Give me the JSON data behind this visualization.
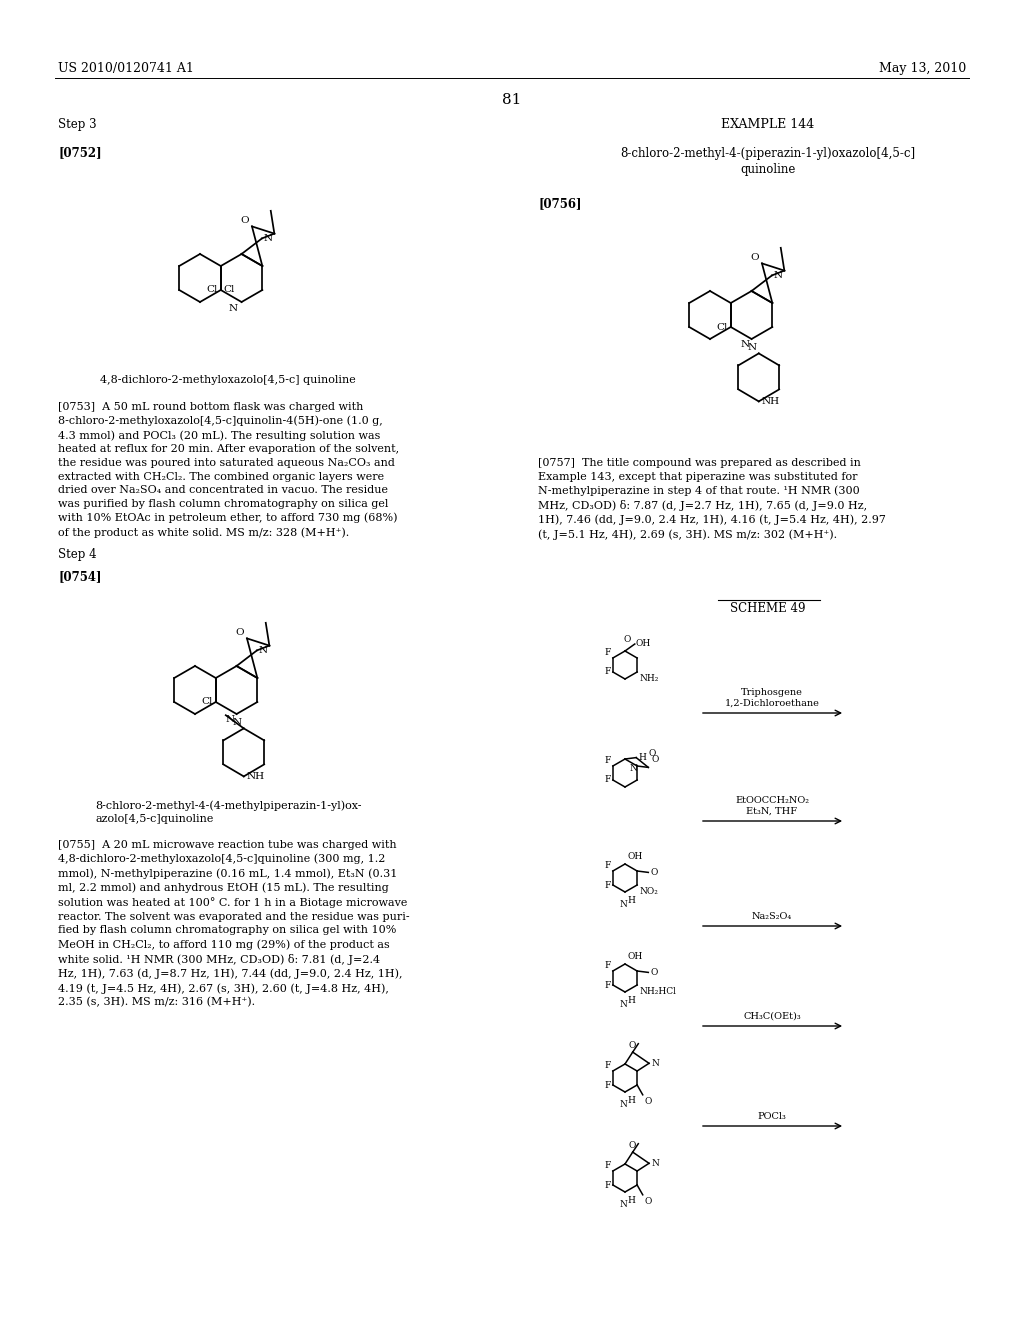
{
  "page_header_left": "US 2010/0120741 A1",
  "page_header_right": "May 13, 2010",
  "page_number": "81",
  "background_color": "#ffffff",
  "text_color": "#000000",
  "left_step3": "Step 3",
  "left_0752": "[0752]",
  "left_compound1_name": "4,8-dichloro-2-methyloxazolo[4,5-c] quinoline",
  "left_p753": "[0753]  A 50 mL round bottom flask was charged with\n8-chloro-2-methyloxazolo[4,5-c]quinolin-4(5H)-one (1.0 g,\n4.3 mmol) and POCl₃ (20 mL). The resulting solution was\nheated at reflux for 20 min. After evaporation of the solvent,\nthe residue was poured into saturated aqueous Na₂CO₃ and\nextracted with CH₂Cl₂. The combined organic layers were\ndried over Na₂SO₄ and concentrated in vacuo. The residue\nwas purified by flash column chromatography on silica gel\nwith 10% EtOAc in petroleum ether, to afford 730 mg (68%)\nof the product as white solid. MS m/z: 328 (M+H⁺).",
  "left_step4": "Step 4",
  "left_0754": "[0754]",
  "left_compound2_name_1": "8-chloro-2-methyl-4-(4-methylpiperazin-1-yl)ox-",
  "left_compound2_name_2": "azolo[4,5-c]quinoline",
  "left_p755": "[0755]  A 20 mL microwave reaction tube was charged with\n4,8-dichloro-2-methyloxazolo[4,5-c]quinoline (300 mg, 1.2\nmmol), N-methylpiperazine (0.16 mL, 1.4 mmol), Et₃N (0.31\nml, 2.2 mmol) and anhydrous EtOH (15 mL). The resulting\nsolution was heated at 100° C. for 1 h in a Biotage microwave\nreactor. The solvent was evaporated and the residue was puri-\nfied by flash column chromatography on silica gel with 10%\nMeOH in CH₂Cl₂, to afford 110 mg (29%) of the product as\nwhite solid. ¹H NMR (300 MHz, CD₃OD) δ: 7.81 (d, J=2.4\nHz, 1H), 7.63 (d, J=8.7 Hz, 1H), 7.44 (dd, J=9.0, 2.4 Hz, 1H),\n4.19 (t, J=4.5 Hz, 4H), 2.67 (s, 3H), 2.60 (t, J=4.8 Hz, 4H),\n2.35 (s, 3H). MS m/z: 316 (M+H⁺).",
  "right_example_header": "EXAMPLE 144",
  "right_example_title1": "8-chloro-2-methyl-4-(piperazin-1-yl)oxazolo[4,5-c]",
  "right_example_title2": "quinoline",
  "right_0756": "[0756]",
  "right_p757": "[0757]  The title compound was prepared as described in\nExample 143, except that piperazine was substituted for\nN-methylpiperazine in step 4 of that route. ¹H NMR (300\nMHz, CD₃OD) δ: 7.87 (d, J=2.7 Hz, 1H), 7.65 (d, J=9.0 Hz,\n1H), 7.46 (dd, J=9.0, 2.4 Hz, 1H), 4.16 (t, J=5.4 Hz, 4H), 2.97\n(t, J=5.1 Hz, 4H), 2.69 (s, 3H). MS m/z: 302 (M+H⁺).",
  "scheme_label": "SCHEME 49",
  "reaction_labels": [
    "Triphosgene\n1,2-Dichloroethane",
    "EtOOCCH₂NO₂\nEt₃N, THF",
    "Na₂S₂O₄",
    "CH₃C(OEt)₃",
    "POCl₃"
  ]
}
